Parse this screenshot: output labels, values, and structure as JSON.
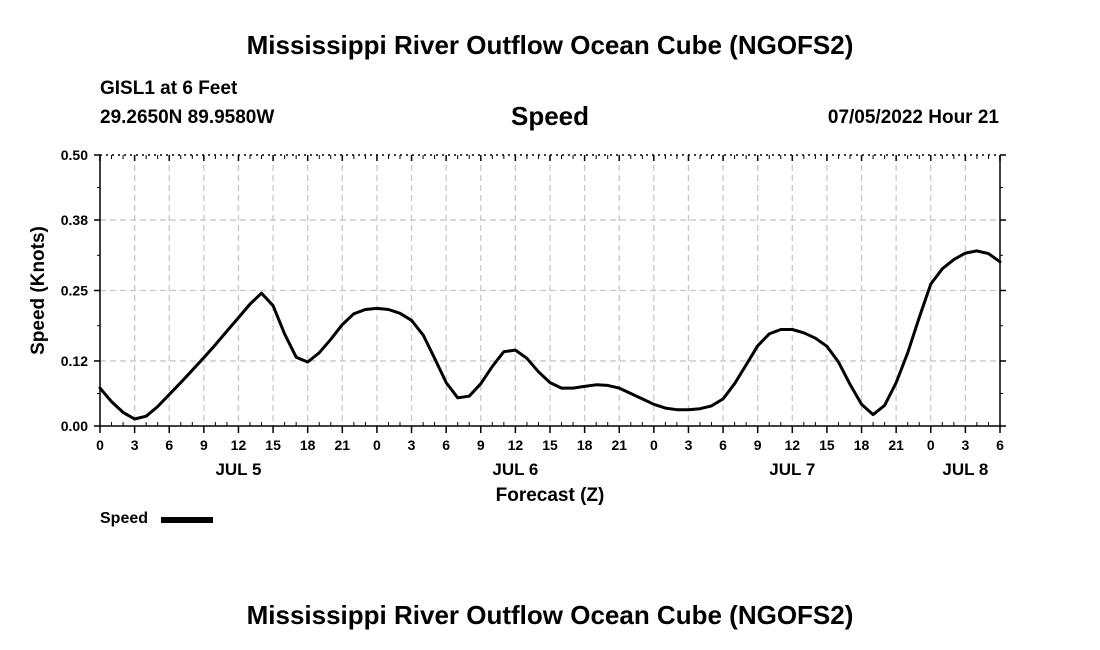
{
  "header": {
    "title": "Mississippi River Outflow Ocean Cube (NGOFS2)",
    "station": "GISL1 at 6 Feet",
    "coords": "29.2650N  89.9580W",
    "variable": "Speed",
    "datetime": "07/05/2022 Hour 21"
  },
  "footer": {
    "title": "Mississippi River Outflow Ocean Cube (NGOFS2)"
  },
  "legend": {
    "label": "Speed"
  },
  "chart_data": {
    "type": "line",
    "title": "Speed",
    "xlabel": "Forecast (Z)",
    "ylabel": "Speed (Knots)",
    "ylim": [
      0,
      0.5
    ],
    "yticks": [
      0.0,
      0.12,
      0.25,
      0.38,
      0.5
    ],
    "ytick_labels": [
      "0.00",
      "0.12",
      "0.25",
      "0.38",
      "0.50"
    ],
    "xlim": [
      0,
      78
    ],
    "xticks": [
      0,
      3,
      6,
      9,
      12,
      15,
      18,
      21,
      24,
      27,
      30,
      33,
      36,
      39,
      42,
      45,
      48,
      51,
      54,
      57,
      60,
      63,
      66,
      69,
      72,
      75,
      78
    ],
    "xtick_labels": [
      "0",
      "3",
      "6",
      "9",
      "12",
      "15",
      "18",
      "21",
      "0",
      "3",
      "6",
      "9",
      "12",
      "15",
      "18",
      "21",
      "0",
      "3",
      "6",
      "9",
      "12",
      "15",
      "18",
      "21",
      "0",
      "3",
      "6"
    ],
    "date_labels": [
      {
        "label": "JUL 5",
        "x": 12
      },
      {
        "label": "JUL 6",
        "x": 36
      },
      {
        "label": "JUL 7",
        "x": 60
      },
      {
        "label": "JUL 8",
        "x": 75
      }
    ],
    "grid": true,
    "legend": "bottom-left",
    "series": [
      {
        "name": "Speed",
        "x": [
          0,
          1,
          2,
          3,
          4,
          5,
          6,
          7,
          8,
          9,
          10,
          11,
          12,
          13,
          14,
          15,
          16,
          17,
          18,
          19,
          20,
          21,
          22,
          23,
          24,
          25,
          26,
          27,
          28,
          29,
          30,
          31,
          32,
          33,
          34,
          35,
          36,
          37,
          38,
          39,
          40,
          41,
          42,
          43,
          44,
          45,
          46,
          47,
          48,
          49,
          50,
          51,
          52,
          53,
          54,
          55,
          56,
          57,
          58,
          59,
          60,
          61,
          62,
          63,
          64,
          65,
          66,
          67,
          68,
          69,
          70,
          71,
          72,
          73,
          74,
          75,
          76,
          77,
          78
        ],
        "values": [
          0.07,
          0.045,
          0.025,
          0.013,
          0.018,
          0.036,
          0.058,
          0.08,
          0.103,
          0.126,
          0.15,
          0.175,
          0.2,
          0.225,
          0.245,
          0.222,
          0.17,
          0.127,
          0.118,
          0.135,
          0.16,
          0.187,
          0.207,
          0.215,
          0.217,
          0.215,
          0.208,
          0.195,
          0.168,
          0.125,
          0.08,
          0.052,
          0.055,
          0.078,
          0.11,
          0.137,
          0.14,
          0.125,
          0.1,
          0.08,
          0.07,
          0.07,
          0.073,
          0.076,
          0.075,
          0.07,
          0.06,
          0.05,
          0.04,
          0.033,
          0.03,
          0.03,
          0.032,
          0.037,
          0.05,
          0.078,
          0.113,
          0.148,
          0.17,
          0.178,
          0.178,
          0.172,
          0.162,
          0.147,
          0.118,
          0.077,
          0.04,
          0.021,
          0.038,
          0.08,
          0.135,
          0.2,
          0.262,
          0.29,
          0.307,
          0.319,
          0.323,
          0.318,
          0.303
        ]
      }
    ]
  }
}
